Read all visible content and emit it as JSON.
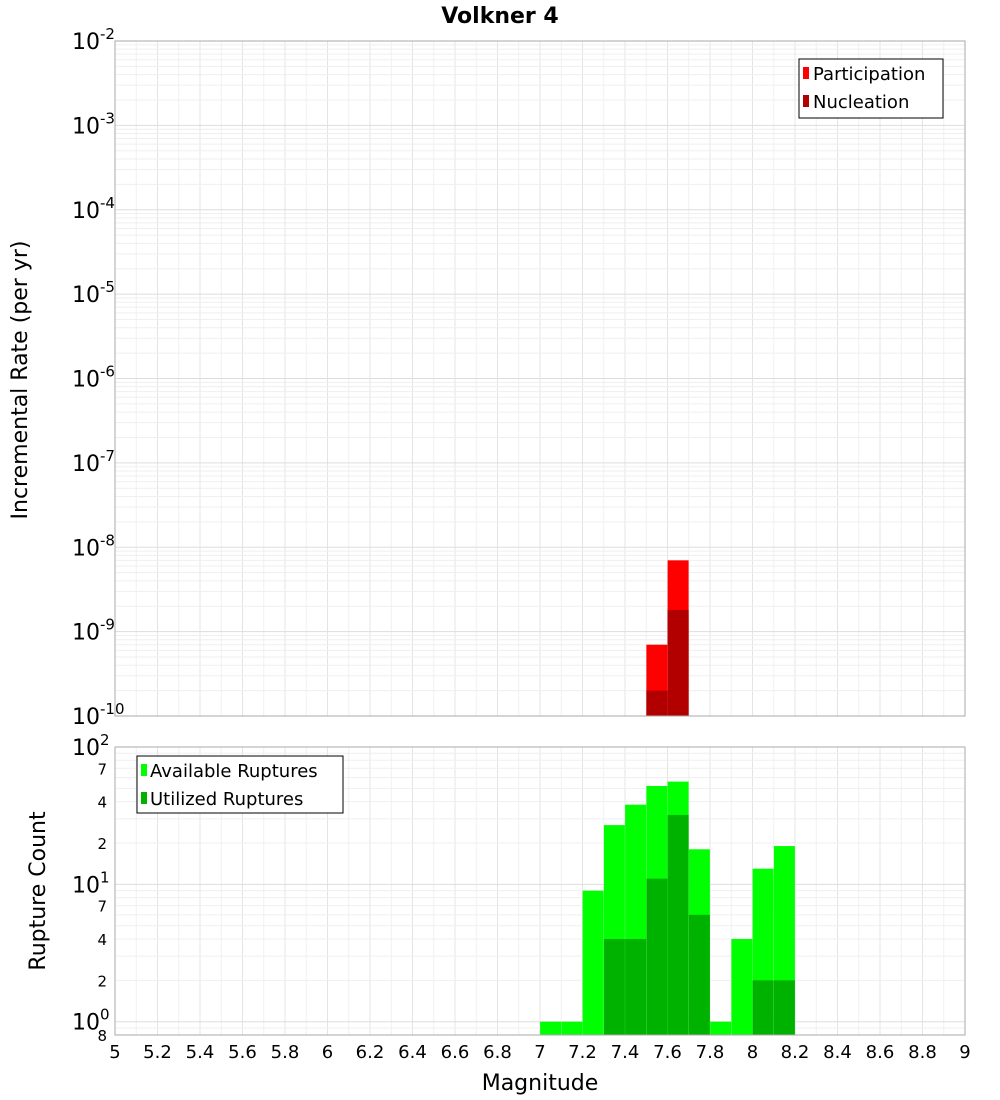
{
  "chart_data": [
    {
      "type": "bar",
      "title": "Volkner 4",
      "xlabel": "",
      "ylabel": "Incremental Rate (per yr)",
      "yscale": "log",
      "xlim": [
        5,
        9
      ],
      "ylim": [
        1e-10,
        0.01
      ],
      "grid": true,
      "legend_position": "top-right",
      "y_ticks": [
        {
          "base": "10",
          "exp": "-2"
        },
        {
          "base": "10",
          "exp": "-3"
        },
        {
          "base": "10",
          "exp": "-4"
        },
        {
          "base": "10",
          "exp": "-5"
        },
        {
          "base": "10",
          "exp": "-6"
        },
        {
          "base": "10",
          "exp": "-7"
        },
        {
          "base": "10",
          "exp": "-8"
        },
        {
          "base": "10",
          "exp": "-9"
        },
        {
          "base": "10",
          "exp": "-10"
        }
      ],
      "series": [
        {
          "name": "Participation",
          "color": "#ff0000",
          "points": [
            {
              "x": 7.55,
              "y": 7e-10
            },
            {
              "x": 7.65,
              "y": 7e-09
            }
          ]
        },
        {
          "name": "Nucleation",
          "color": "#b20000",
          "points": [
            {
              "x": 7.55,
              "y": 2e-10
            },
            {
              "x": 7.65,
              "y": 1.8e-09
            }
          ]
        }
      ]
    },
    {
      "type": "bar",
      "xlabel": "Magnitude",
      "ylabel": "Rupture Count",
      "yscale": "log",
      "xlim": [
        5,
        9
      ],
      "ylim": [
        0.8,
        100
      ],
      "grid": true,
      "legend_position": "top-left",
      "x_ticks": [
        "5",
        "5.2",
        "5.4",
        "5.6",
        "5.8",
        "6",
        "6.2",
        "6.4",
        "6.6",
        "6.8",
        "7",
        "7.2",
        "7.4",
        "7.6",
        "7.8",
        "8",
        "8.2",
        "8.4",
        "8.6",
        "8.8",
        "9"
      ],
      "y_major_ticks": [
        {
          "base": "10",
          "exp": "2"
        },
        {
          "base": "10",
          "exp": "1"
        },
        {
          "base": "10",
          "exp": "0"
        }
      ],
      "y_minor_ticks": [
        "7",
        "4",
        "2",
        "7",
        "4",
        "2",
        "8"
      ],
      "series": [
        {
          "name": "Available Ruptures",
          "color": "#00ff00",
          "points": [
            {
              "x": 7.05,
              "y": 1
            },
            {
              "x": 7.15,
              "y": 1
            },
            {
              "x": 7.25,
              "y": 9
            },
            {
              "x": 7.35,
              "y": 27
            },
            {
              "x": 7.45,
              "y": 38
            },
            {
              "x": 7.55,
              "y": 52
            },
            {
              "x": 7.65,
              "y": 56
            },
            {
              "x": 7.75,
              "y": 18
            },
            {
              "x": 7.85,
              "y": 1
            },
            {
              "x": 7.95,
              "y": 4
            },
            {
              "x": 8.05,
              "y": 13
            },
            {
              "x": 8.15,
              "y": 19
            }
          ]
        },
        {
          "name": "Utilized Ruptures",
          "color": "#00b200",
          "points": [
            {
              "x": 7.35,
              "y": 4
            },
            {
              "x": 7.45,
              "y": 4
            },
            {
              "x": 7.55,
              "y": 11
            },
            {
              "x": 7.65,
              "y": 32
            },
            {
              "x": 7.75,
              "y": 6
            },
            {
              "x": 8.05,
              "y": 2
            },
            {
              "x": 8.15,
              "y": 2
            }
          ]
        }
      ]
    }
  ]
}
